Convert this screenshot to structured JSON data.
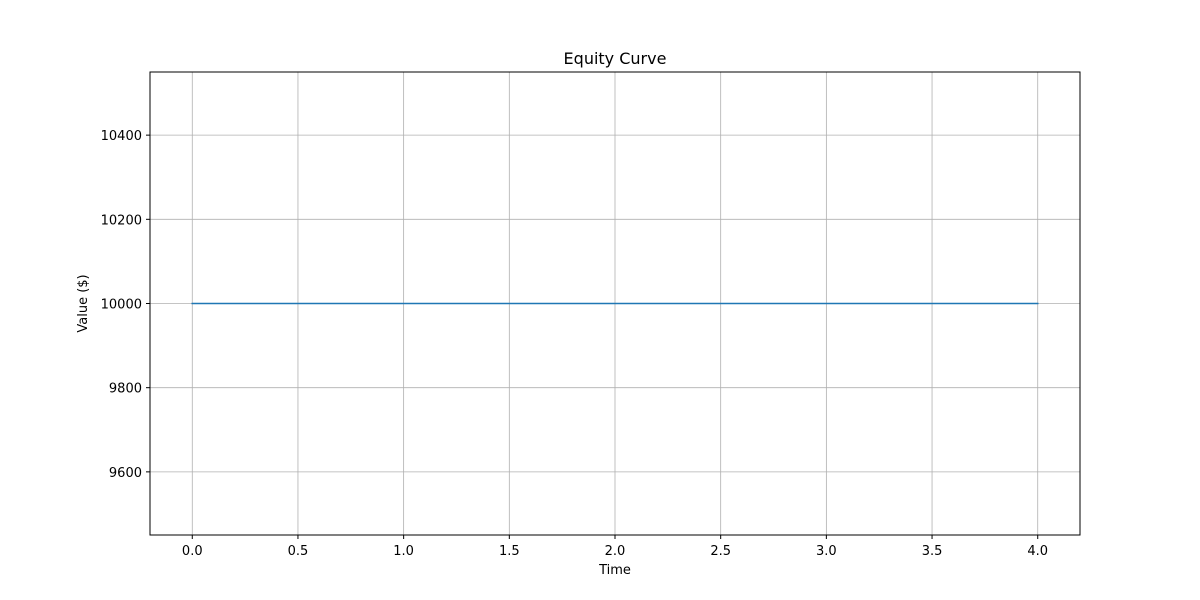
{
  "chart_data": {
    "type": "line",
    "title": "Equity Curve",
    "xlabel": "Time",
    "ylabel": "Value ($)",
    "xlim": [
      -0.2,
      4.2
    ],
    "ylim": [
      9450,
      10550
    ],
    "xticks": [
      0.0,
      0.5,
      1.0,
      1.5,
      2.0,
      2.5,
      3.0,
      3.5,
      4.0
    ],
    "xtick_labels": [
      "0.0",
      "0.5",
      "1.0",
      "1.5",
      "2.0",
      "2.5",
      "3.0",
      "3.5",
      "4.0"
    ],
    "yticks": [
      9600,
      9800,
      10000,
      10200,
      10400
    ],
    "ytick_labels": [
      "9600",
      "9800",
      "10000",
      "10200",
      "10400"
    ],
    "grid": true,
    "series": [
      {
        "x": [
          0,
          1,
          2,
          3,
          4
        ],
        "y": [
          10000,
          10000,
          10000,
          10000,
          10000
        ],
        "color": "#1f77b4"
      }
    ]
  }
}
